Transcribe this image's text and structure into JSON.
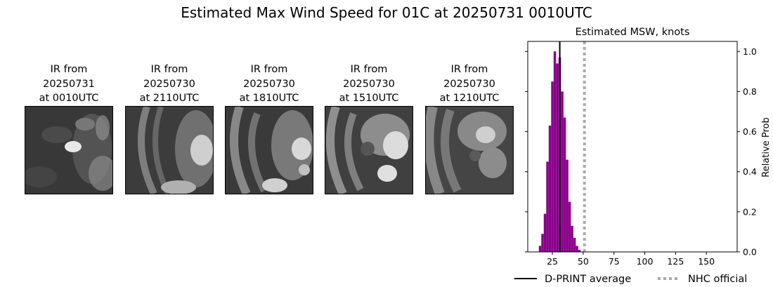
{
  "title": "Estimated Max Wind Speed for 01C at 20250731 0010UTC",
  "panels": [
    {
      "line1": "IR from",
      "line2": "20250731",
      "line3": "at 0010UTC"
    },
    {
      "line1": "IR from",
      "line2": "20250730",
      "line3": "at 2110UTC"
    },
    {
      "line1": "IR from",
      "line2": "20250730",
      "line3": "at 1810UTC"
    },
    {
      "line1": "IR from",
      "line2": "20250730",
      "line3": "at 1510UTC"
    },
    {
      "line1": "IR from",
      "line2": "20250730",
      "line3": "at 1210UTC"
    }
  ],
  "chart_data": {
    "type": "bar",
    "title": "Estimated MSW, knots",
    "xlabel": "",
    "ylabel": "Relative Prob",
    "xlim": [
      5,
      175
    ],
    "ylim": [
      0,
      1.05
    ],
    "xticks": [
      25,
      50,
      75,
      100,
      125,
      150
    ],
    "yticks": [
      0.0,
      0.2,
      0.4,
      0.6,
      0.8,
      1.0
    ],
    "ytick_labels": [
      "0.0",
      "0.2",
      "0.4",
      "0.6",
      "0.8",
      "1.0"
    ],
    "y_axis_side": "right",
    "bin_width": 2,
    "bins": [
      {
        "x": 15,
        "p": 0.03
      },
      {
        "x": 17,
        "p": 0.09
      },
      {
        "x": 19,
        "p": 0.19
      },
      {
        "x": 21,
        "p": 0.45
      },
      {
        "x": 23,
        "p": 0.63
      },
      {
        "x": 25,
        "p": 0.85
      },
      {
        "x": 27,
        "p": 1.0
      },
      {
        "x": 29,
        "p": 0.94
      },
      {
        "x": 31,
        "p": 0.97
      },
      {
        "x": 33,
        "p": 0.8
      },
      {
        "x": 35,
        "p": 0.67
      },
      {
        "x": 37,
        "p": 0.46
      },
      {
        "x": 39,
        "p": 0.25
      },
      {
        "x": 41,
        "p": 0.13
      },
      {
        "x": 43,
        "p": 0.07
      },
      {
        "x": 45,
        "p": 0.03
      },
      {
        "x": 47,
        "p": 0.01
      }
    ],
    "bar_color": "#8b008b",
    "dprint_average": 31,
    "nhc_official": 51,
    "legend": [
      {
        "label": "D-PRINT average",
        "color": "#000000",
        "style": "solid"
      },
      {
        "label": "NHC official",
        "color": "#aaaaaa",
        "style": "dotted"
      }
    ],
    "legend_position": "bottom"
  }
}
